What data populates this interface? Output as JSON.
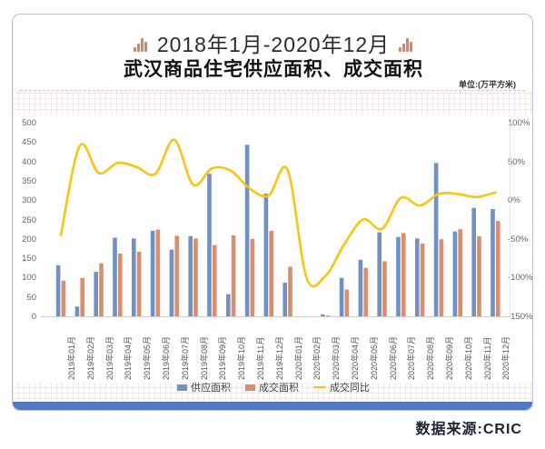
{
  "header": {
    "date_range": "2018年1月-2020年12月",
    "title": "武汉商品住宅供应面积、成交面积",
    "unit_note": "单位:(万平方米)"
  },
  "footer": {
    "source": "数据来源:CRIC"
  },
  "colors": {
    "supply_bar": "#7191c5",
    "transaction_bar": "#d98e6d",
    "yoy_line": "#f9c412",
    "card_accent": "#5379c1",
    "icon_orange": "#d9825f"
  },
  "chart_data": {
    "type": "bar",
    "subtype": "bar+line dual axis",
    "categories": [
      "2019年01月",
      "2019年02月",
      "2019年03月",
      "2019年04月",
      "2019年05月",
      "2019年06月",
      "2019年07月",
      "2019年08月",
      "2019年09月",
      "2019年10月",
      "2019年11月",
      "2019年12月",
      "2020年01月",
      "2020年02月",
      "2020年03月",
      "2020年04月",
      "2020年05月",
      "2020年06月",
      "2020年07月",
      "2020年08月",
      "2020年09月",
      "2020年10月",
      "2020年11月",
      "2020年12月"
    ],
    "series": [
      {
        "name": "供应面积",
        "type": "bar",
        "axis": "left",
        "values": [
          132,
          25,
          115,
          203,
          201,
          221,
          172,
          207,
          368,
          57,
          443,
          317,
          87,
          0,
          5,
          99,
          146,
          217,
          205,
          201,
          396,
          219,
          280,
          277
        ]
      },
      {
        "name": "成交面积",
        "type": "bar",
        "axis": "left",
        "values": [
          92,
          99,
          137,
          162,
          167,
          224,
          208,
          201,
          184,
          209,
          200,
          221,
          128,
          0,
          2,
          69,
          125,
          142,
          215,
          188,
          199,
          225,
          207,
          246
        ]
      },
      {
        "name": "成交同比",
        "type": "line",
        "axis": "right",
        "unit": "%",
        "values": [
          -45,
          70,
          35,
          48,
          43,
          34,
          78,
          20,
          41,
          38,
          15,
          6,
          39,
          -100,
          -98,
          -57,
          -25,
          -37,
          3,
          -7,
          8,
          8,
          4,
          10
        ]
      }
    ],
    "left_axis": {
      "ticks": [
        500,
        450,
        400,
        350,
        300,
        250,
        200,
        150,
        100,
        50,
        0
      ],
      "range": [
        0,
        500
      ]
    },
    "right_axis": {
      "ticks": [
        "100%",
        "50%",
        "0%",
        "-50%",
        "-100%",
        "-150%"
      ],
      "range_pct": [
        -150,
        100
      ]
    },
    "legend_position": "bottom-center",
    "grid": "off"
  }
}
